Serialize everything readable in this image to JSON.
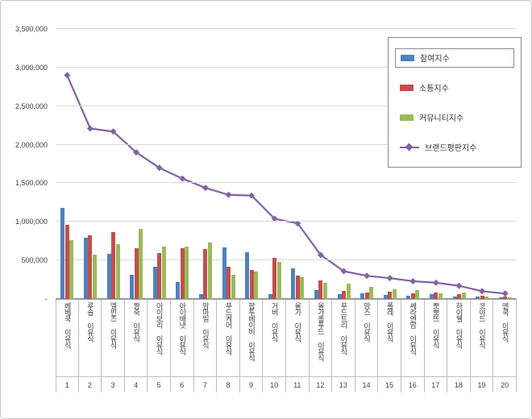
{
  "chart_data": {
    "type": "bar",
    "title": "",
    "grid": true,
    "legend_position": "top-right",
    "categories": [
      "베베쿡 이유식",
      "루솔 이유식",
      "엘빈즈 이유식",
      "짱죽 이유식",
      "아이보리 이유식",
      "아이배냇 이유식",
      "맘마밀 이유식",
      "푸드케어 이유식",
      "팜투베이비 이유식",
      "거버 이유식",
      "올가 이유식",
      "올가홀푸드 이유식",
      "푸드트리 이유식",
      "맘스 이유식",
      "폴레 이유식",
      "쎄라앤맘 이유식",
      "뽀뽀뜨 이유식",
      "하이웰 이유식",
      "코야드 이유식",
      "앤쿡 이유식"
    ],
    "ranks": [
      "1",
      "2",
      "3",
      "4",
      "5",
      "6",
      "7",
      "8",
      "9",
      "10",
      "11",
      "12",
      "13",
      "14",
      "15",
      "16",
      "17",
      "18",
      "19",
      "20"
    ],
    "series": [
      {
        "name": "참여지수",
        "kind": "bar",
        "color": "#4F81BD",
        "values": [
          1180000,
          790000,
          590000,
          310000,
          420000,
          215000,
          60000,
          670000,
          610000,
          60000,
          400000,
          120000,
          60000,
          70000,
          50000,
          40000,
          60000,
          30000,
          30000,
          20000
        ]
      },
      {
        "name": "소통지수",
        "kind": "bar",
        "color": "#C0504D",
        "values": [
          960000,
          830000,
          870000,
          660000,
          600000,
          660000,
          650000,
          420000,
          380000,
          530000,
          300000,
          240000,
          100000,
          80000,
          90000,
          70000,
          80000,
          60000,
          40000,
          30000
        ]
      },
      {
        "name": "커뮤니티지수",
        "kind": "bar",
        "color": "#9BBB59",
        "values": [
          760000,
          570000,
          710000,
          910000,
          680000,
          680000,
          730000,
          310000,
          360000,
          480000,
          280000,
          210000,
          200000,
          160000,
          130000,
          120000,
          70000,
          80000,
          30000,
          20000
        ]
      },
      {
        "name": "브랜드평판지수",
        "kind": "line",
        "color": "#8064A2",
        "values": [
          2900000,
          2210000,
          2170000,
          1900000,
          1700000,
          1560000,
          1440000,
          1350000,
          1340000,
          1040000,
          980000,
          570000,
          360000,
          300000,
          270000,
          230000,
          210000,
          170000,
          100000,
          70000
        ]
      }
    ],
    "y_axis": {
      "min": 0,
      "max": 3500000,
      "step": 500000,
      "tick_labels_bottom_to_top": [
        "-",
        "500,000",
        "1,000,000",
        "1,500,000",
        "2,000,000",
        "2,500,000",
        "3,000,000",
        "3,500,000"
      ]
    },
    "colors": {
      "gridline": "#d9d9d9",
      "axis": "#9a9a9a",
      "text": "#404040"
    }
  }
}
